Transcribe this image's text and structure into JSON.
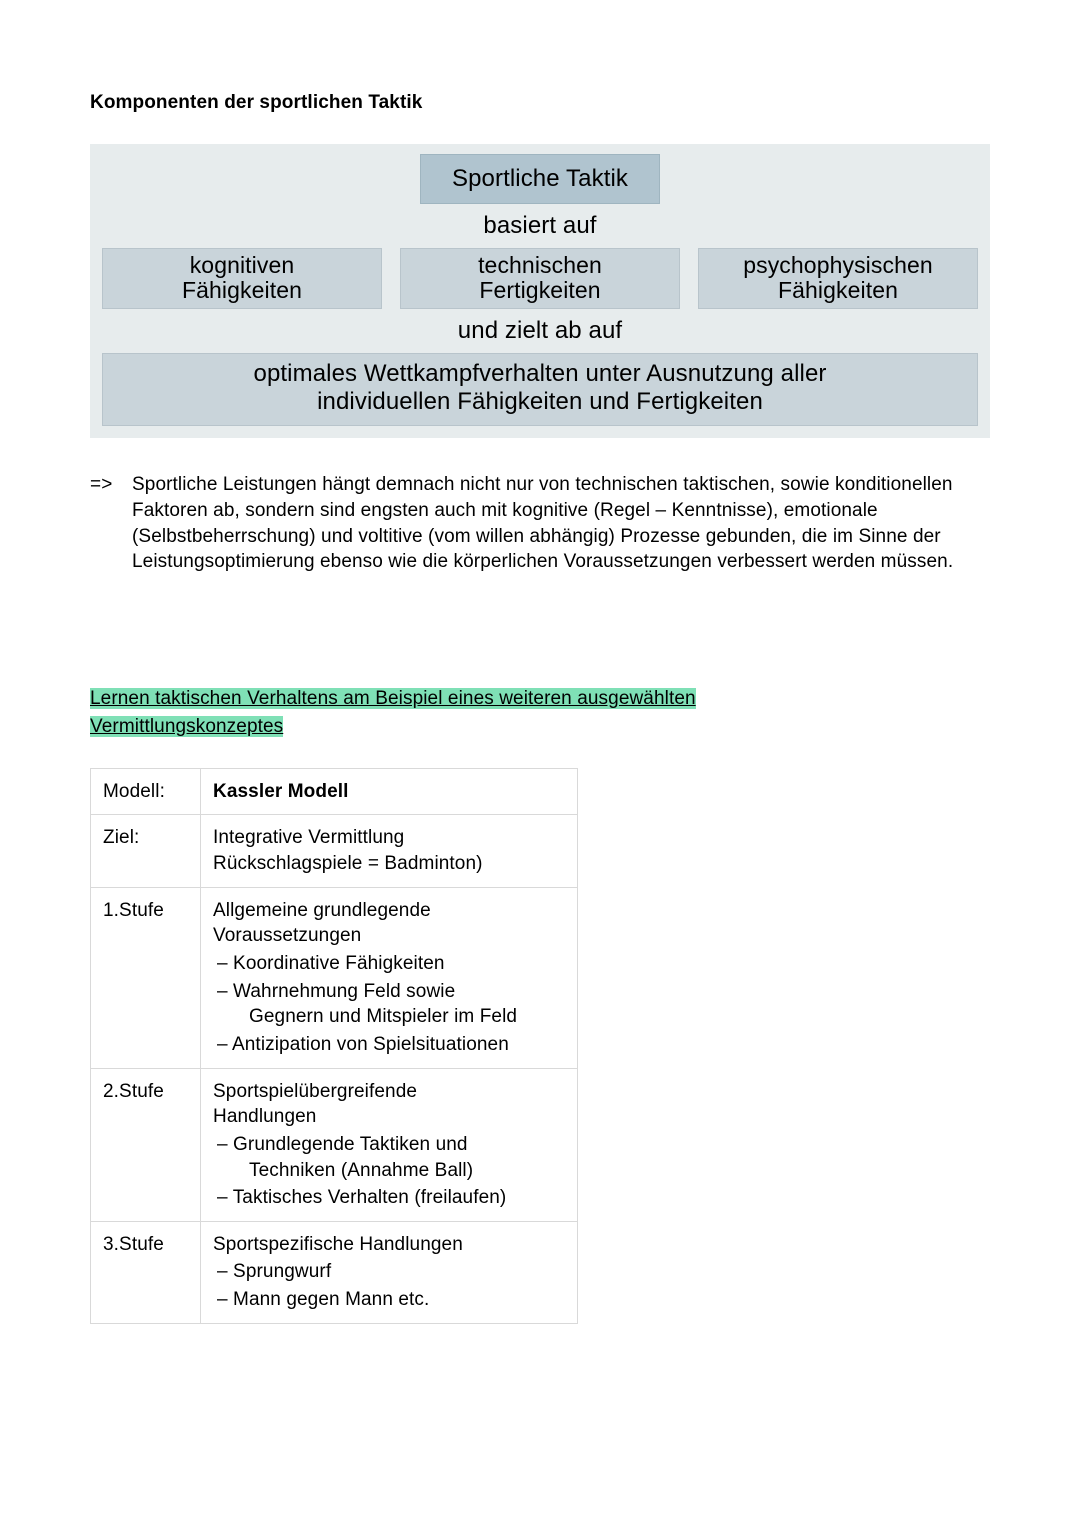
{
  "title": "Komponenten der sportlichen Taktik",
  "diagram": {
    "bg": "#e7eced",
    "box_bg_top": "#b0c4cf",
    "box_bg": "#c9d4da",
    "top": "Sportliche Taktik",
    "link1": "basiert auf",
    "col1_a": "kognitiven",
    "col1_b": "Fähigkeiten",
    "col2_a": "technischen",
    "col2_b": "Fertigkeiten",
    "col3_a": "psychophysischen",
    "col3_b": "Fähigkeiten",
    "link2": "und zielt ab auf",
    "bottom_a": "optimales Wettkampfverhalten unter Ausnutzung aller",
    "bottom_b": "individuellen Fähigkeiten und Fertigkeiten"
  },
  "para": {
    "arrow": "=>",
    "text": "Sportliche Leistungen hängt demnach nicht nur von technischen taktischen, sowie konditionellen Faktoren ab, sondern sind engsten auch mit kognitive (Regel – Kenntnisse), emotionale (Selbstbeherrschung) und voltitive (vom willen abhängig) Prozesse gebunden, die im Sinne der Leistungsoptimierung ebenso wie die körperlichen Voraussetzungen verbessert werden müssen."
  },
  "heading_line1": "Lernen taktischen Verhaltens am Beispiel eines weiteren ausgewählten",
  "heading_line2": "Vermittlungskonzeptes",
  "table": {
    "r1_label": "Modell:",
    "r1_val": "Kassler Modell",
    "r2_label": "Ziel:",
    "r2_val_a": "Integrative Vermittlung",
    "r2_val_b": "Rückschlagspiele = Badminton)",
    "r3_label": "1.Stufe",
    "r3_l1": "Allgemeine grundlegende",
    "r3_l2": "Voraussetzungen",
    "r3_b1": "– Koordinative Fähigkeiten",
    "r3_b2": "– Wahrnehmung Feld sowie",
    "r3_b2b": "Gegnern und Mitspieler im Feld",
    "r3_b3": "– Antizipation von Spielsituationen",
    "r4_label": "2.Stufe",
    "r4_l1": "Sportspielübergreifende",
    "r4_l2": "Handlungen",
    "r4_b1": "– Grundlegende Taktiken und",
    "r4_b1b": "Techniken (Annahme Ball)",
    "r4_b2": "– Taktisches Verhalten (freilaufen)",
    "r5_label": "3.Stufe",
    "r5_l1": "Sportspezifische Handlungen",
    "r5_b1": "– Sprungwurf",
    "r5_b2": "– Mann gegen Mann etc."
  }
}
